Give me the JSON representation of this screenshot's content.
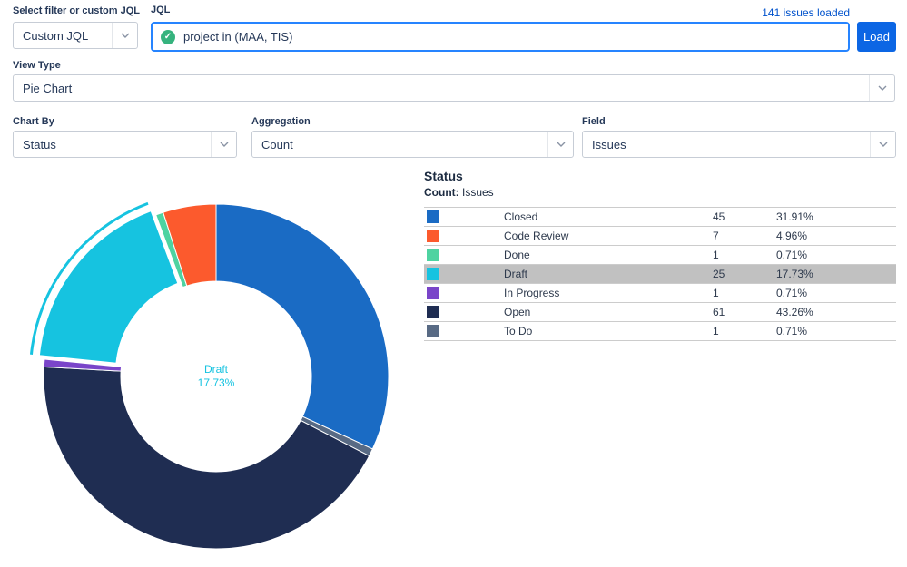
{
  "toolbar": {
    "filter": {
      "label": "Select filter or custom JQL",
      "value": "Custom JQL"
    },
    "jql": {
      "label": "JQL",
      "value": "project in (MAA, TIS)"
    },
    "issues_loaded": "141 issues loaded",
    "load_label": "Load",
    "view_type": {
      "label": "View Type",
      "value": "Pie Chart"
    },
    "chart_by": {
      "label": "Chart By",
      "value": "Status"
    },
    "aggregation": {
      "label": "Aggregation",
      "value": "Count"
    },
    "field": {
      "label": "Field",
      "value": "Issues"
    }
  },
  "legend": {
    "title": "Status",
    "subtitle_label": "Count:",
    "subtitle_value": "Issues"
  },
  "chart_data": {
    "type": "pie",
    "donut": true,
    "title": "Status",
    "aggregation": "Count",
    "field": "Issues",
    "categories": [
      "Closed",
      "Code Review",
      "Done",
      "Draft",
      "In Progress",
      "Open",
      "To Do"
    ],
    "values": [
      45,
      7,
      1,
      25,
      1,
      61,
      1
    ],
    "percent_labels": [
      "31.91%",
      "4.96%",
      "0.71%",
      "17.73%",
      "0.71%",
      "43.26%",
      "0.71%"
    ],
    "colors": [
      "#1a6bc4",
      "#fc5a2d",
      "#4ed3a1",
      "#16c3e0",
      "#7a45c9",
      "#1f2d52",
      "#586a84"
    ],
    "total": 141,
    "selected": "Draft",
    "slice_order_clockwise": [
      "Closed",
      "To Do",
      "Open",
      "In Progress",
      "Draft",
      "Done",
      "Code Review"
    ],
    "legend_position": "right"
  },
  "colors": {
    "accent_blue": "#0052cc",
    "focus_border": "#2684ff",
    "success_green": "#36b37e",
    "selected_row_bg": "#c1c1c1"
  }
}
